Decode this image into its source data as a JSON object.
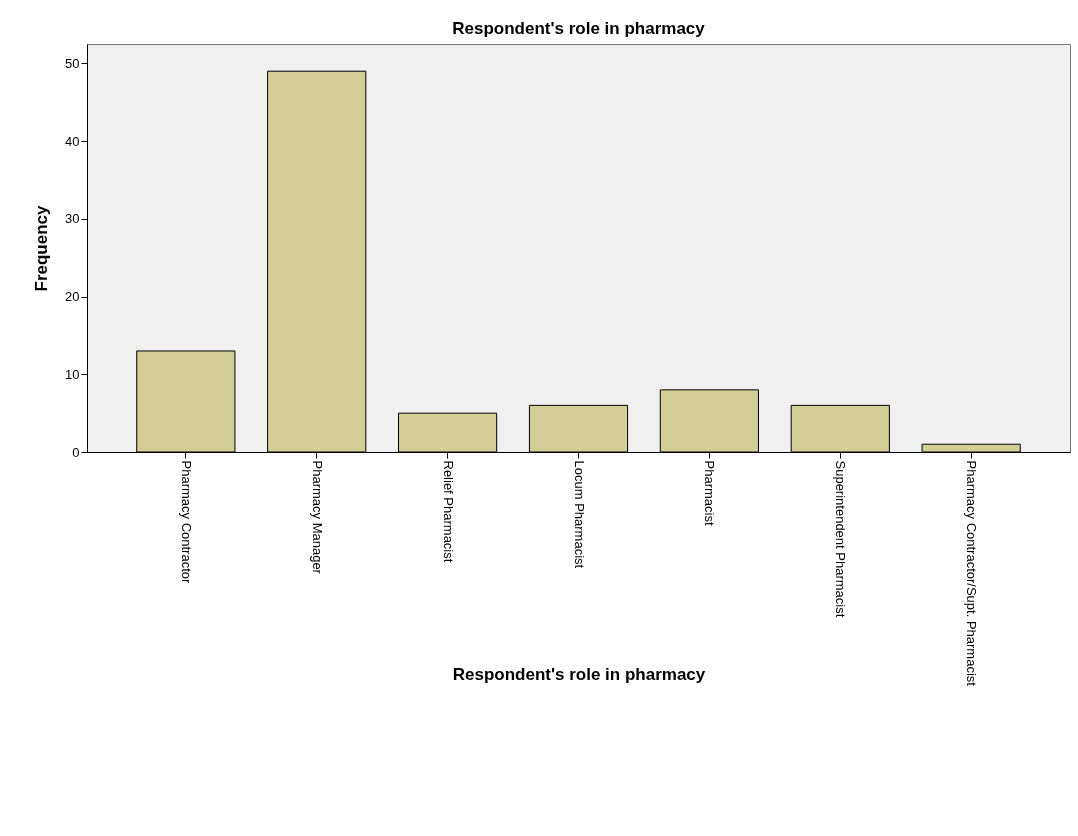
{
  "chart_data": {
    "type": "bar",
    "title": "Respondent's role in pharmacy",
    "xlabel": "Respondent's role in pharmacy",
    "ylabel": "Frequency",
    "categories": [
      "Pharmacy Contractor",
      "Pharmacy Manager",
      "Relief Pharmacist",
      "Locum Pharmacist",
      "Pharmacist",
      "Superintendent Pharmacist",
      "Pharmacy Contractor/Supt. Pharmacist"
    ],
    "values": [
      13,
      49,
      5,
      6,
      8,
      6,
      1
    ],
    "color": "#d3ce97",
    "ylim": [
      0,
      52.5
    ],
    "yticks": [
      0,
      10,
      20,
      30,
      40,
      50
    ],
    "grid": false
  }
}
